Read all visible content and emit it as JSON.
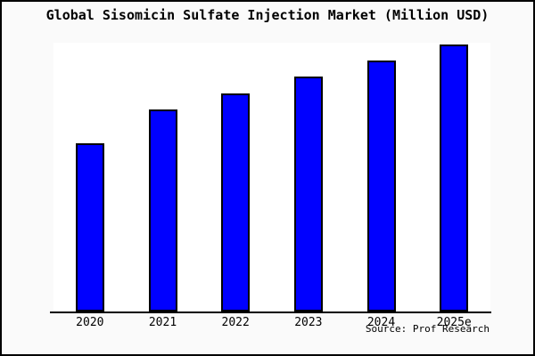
{
  "window": {
    "background_color": "#fafafa",
    "frame_border_color": "#000000"
  },
  "chart_data": {
    "type": "bar",
    "title": "Global Sisomicin Sulfate Injection Market (Million USD)",
    "categories": [
      "2020",
      "2021",
      "2022",
      "2023",
      "2024",
      "2025e"
    ],
    "values": [
      63,
      75.5,
      81.7,
      88,
      94,
      100
    ],
    "value_scale_note": "relative bar heights as % of 2025e bar; chart shows no y-axis tick labels",
    "ylim": [
      0,
      100
    ],
    "xlabel": "",
    "ylabel": "",
    "grid": false,
    "legend": false,
    "bar_color": "#0000ff",
    "bar_border_color": "#000000",
    "plot_background": "#ffffff",
    "source": "Source: Prof Research"
  }
}
